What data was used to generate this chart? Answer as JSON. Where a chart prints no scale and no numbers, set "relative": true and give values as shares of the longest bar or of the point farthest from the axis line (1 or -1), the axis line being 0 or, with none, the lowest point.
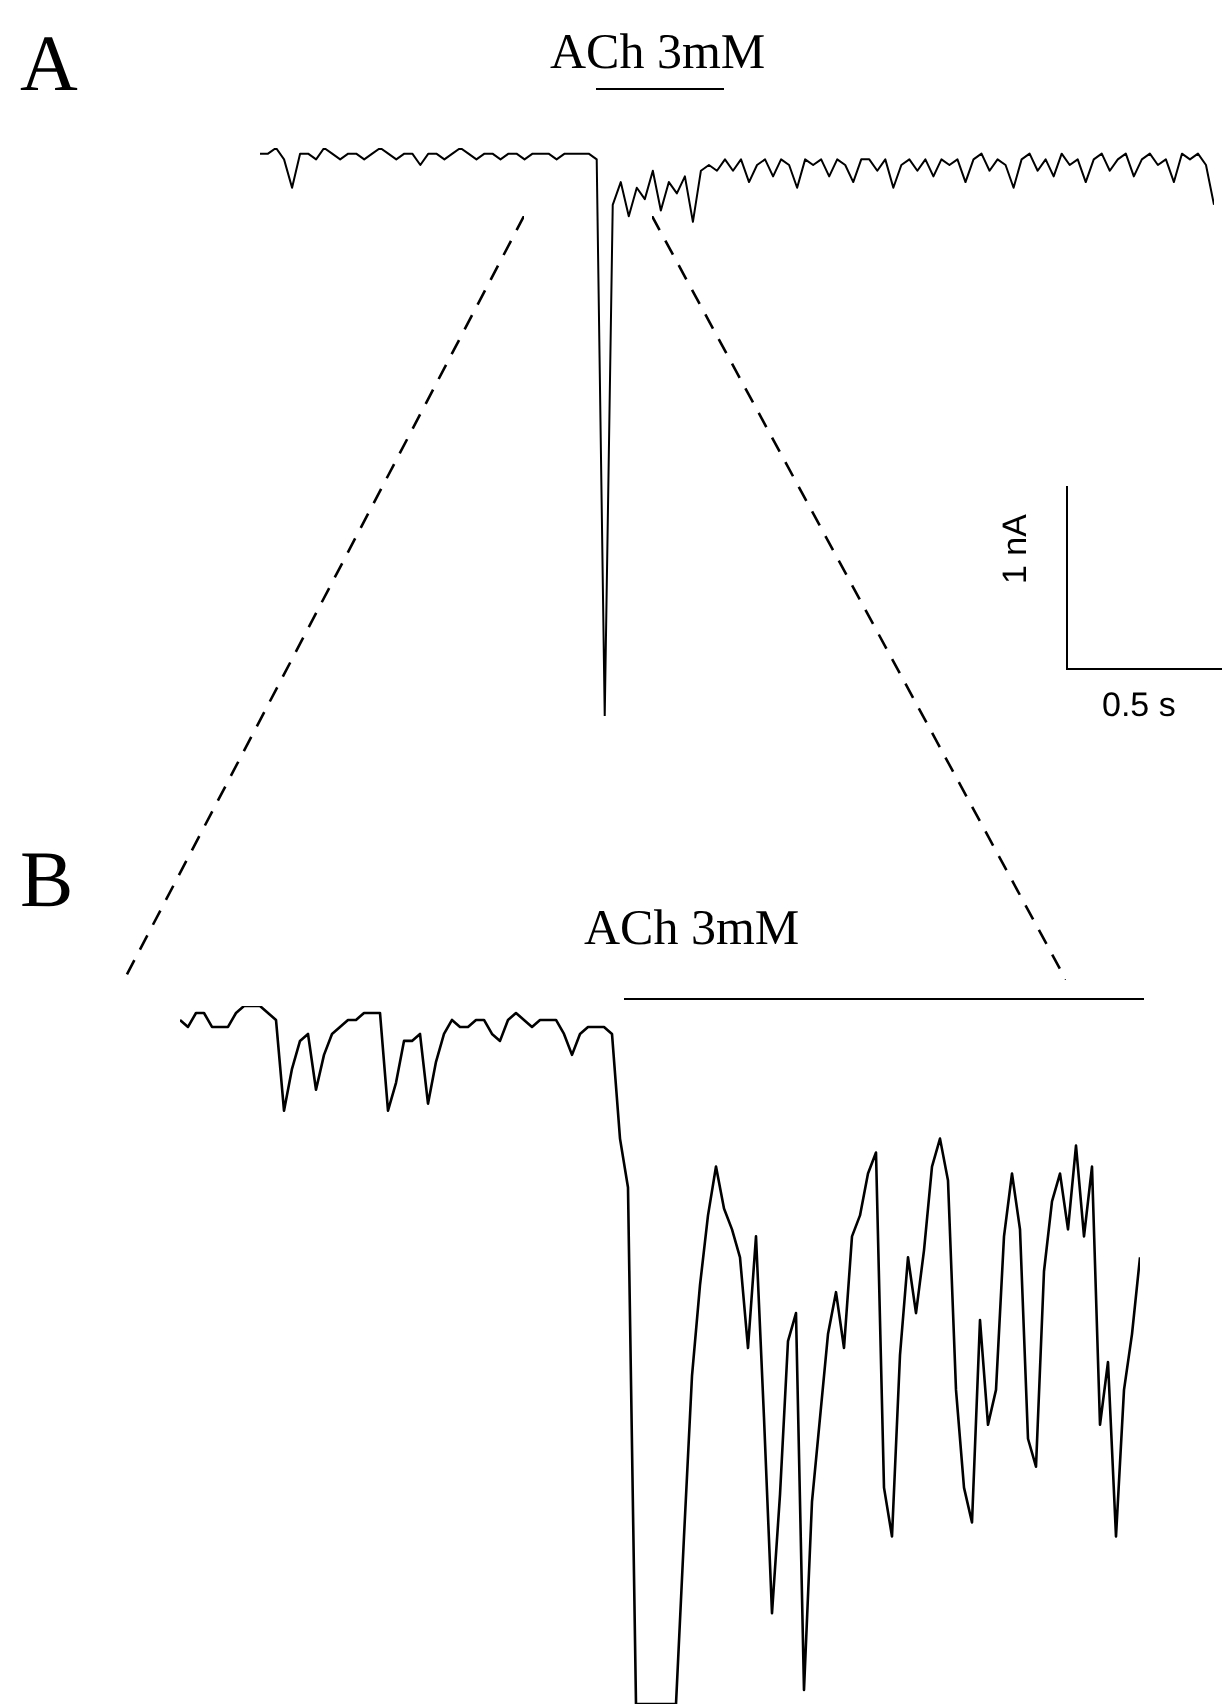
{
  "chart_data": [
    {
      "type": "line",
      "title": "A",
      "relative": true,
      "legend": false,
      "annotations": [
        "ACh 3mM",
        "1 nA",
        "0.5 s"
      ],
      "categories": [
        null,
        null,
        null,
        null,
        null,
        null,
        null,
        null,
        null,
        null,
        null,
        null,
        null,
        null,
        null,
        null,
        null,
        null,
        null,
        null,
        null,
        null,
        null,
        null,
        null,
        null,
        null,
        null,
        null,
        null,
        null,
        null,
        null,
        null,
        null,
        null,
        null,
        null,
        null,
        null,
        null,
        null,
        null,
        null,
        null,
        null,
        null,
        null,
        null,
        null,
        null,
        null,
        null,
        null,
        null,
        null,
        null,
        null,
        null,
        null,
        null,
        null,
        null,
        null,
        null,
        null,
        null,
        null,
        null,
        null,
        null,
        null,
        null,
        null,
        null,
        null,
        null,
        null,
        null,
        null,
        null,
        null,
        null,
        null,
        null,
        null,
        null,
        null,
        null,
        null,
        null,
        null,
        null,
        null,
        null,
        null,
        null,
        null,
        null,
        null,
        null,
        null,
        null,
        null,
        null,
        null,
        null,
        null,
        null,
        null,
        null,
        null,
        null,
        null,
        null,
        null,
        null,
        null,
        null,
        null
      ],
      "series": [
        {
          "color": "#000000",
          "values": [
            0.99,
            0.99,
            1,
            0.98,
            0.93,
            0.99,
            0.99,
            0.98,
            1,
            0.99,
            0.98,
            0.99,
            0.99,
            0.98,
            0.99,
            1,
            0.99,
            0.98,
            0.99,
            0.99,
            0.97,
            0.99,
            0.99,
            0.98,
            0.99,
            1,
            0.99,
            0.98,
            0.99,
            0.99,
            0.98,
            0.99,
            0.99,
            0.98,
            0.99,
            0.99,
            0.99,
            0.98,
            0.99,
            0.99,
            0.99,
            0.99,
            0.98,
            0,
            0.9,
            0.94,
            0.88,
            0.93,
            0.91,
            0.96,
            0.89,
            0.94,
            0.92,
            0.95,
            0.87,
            0.96,
            0.97,
            0.96,
            0.98,
            0.96,
            0.98,
            0.94,
            0.97,
            0.98,
            0.95,
            0.98,
            0.97,
            0.93,
            0.98,
            0.97,
            0.98,
            0.95,
            0.98,
            0.97,
            0.94,
            0.98,
            0.98,
            0.96,
            0.98,
            0.93,
            0.97,
            0.98,
            0.96,
            0.98,
            0.95,
            0.98,
            0.97,
            0.98,
            0.94,
            0.98,
            0.99,
            0.96,
            0.98,
            0.97,
            0.93,
            0.98,
            0.99,
            0.96,
            0.98,
            0.95,
            0.99,
            0.97,
            0.98,
            0.94,
            0.98,
            0.99,
            0.96,
            0.98,
            0.99,
            0.95,
            0.98,
            0.99,
            0.97,
            0.98,
            0.94,
            0.99,
            0.98,
            0.99,
            0.97,
            0.9
          ]
        }
      ]
    },
    {
      "type": "line",
      "title": "B",
      "relative": true,
      "legend": false,
      "annotations": [
        "ACh 3mM"
      ],
      "categories": [
        null,
        null,
        null,
        null,
        null,
        null,
        null,
        null,
        null,
        null,
        null,
        null,
        null,
        null,
        null,
        null,
        null,
        null,
        null,
        null,
        null,
        null,
        null,
        null,
        null,
        null,
        null,
        null,
        null,
        null,
        null,
        null,
        null,
        null,
        null,
        null,
        null,
        null,
        null,
        null,
        null,
        null,
        null,
        null,
        null,
        null,
        null,
        null,
        null,
        null,
        null,
        null,
        null,
        null,
        null,
        null,
        null,
        null,
        null,
        null,
        null,
        null,
        null,
        null,
        null,
        null,
        null,
        null,
        null,
        null,
        null,
        null,
        null,
        null,
        null,
        null,
        null,
        null,
        null,
        null,
        null,
        null,
        null,
        null,
        null,
        null,
        null,
        null,
        null,
        null,
        null,
        null,
        null,
        null,
        null,
        null,
        null,
        null,
        null,
        null,
        null,
        null,
        null,
        null,
        null,
        null,
        null,
        null,
        null,
        null,
        null,
        null,
        null,
        null,
        null,
        null,
        null,
        null,
        null,
        null,
        null
      ],
      "series": [
        {
          "color": "#000000",
          "values": [
            0.98,
            0.97,
            0.99,
            0.99,
            0.97,
            0.97,
            0.97,
            0.99,
            1,
            1,
            1,
            0.99,
            0.98,
            0.85,
            0.91,
            0.95,
            0.96,
            0.88,
            0.93,
            0.96,
            0.97,
            0.98,
            0.98,
            0.99,
            0.99,
            0.99,
            0.85,
            0.89,
            0.95,
            0.95,
            0.96,
            0.86,
            0.92,
            0.96,
            0.98,
            0.97,
            0.97,
            0.98,
            0.98,
            0.96,
            0.95,
            0.98,
            0.99,
            0.98,
            0.97,
            0.98,
            0.98,
            0.98,
            0.96,
            0.93,
            0.96,
            0.97,
            0.97,
            0.97,
            0.96,
            0.81,
            0.74,
            0,
            0,
            0,
            0,
            0,
            0,
            0.24,
            0.47,
            0.6,
            0.7,
            0.77,
            0.71,
            0.68,
            0.64,
            0.51,
            0.67,
            0.41,
            0.13,
            0.3,
            0.52,
            0.56,
            0.02,
            0.29,
            0.41,
            0.53,
            0.59,
            0.51,
            0.67,
            0.7,
            0.76,
            0.79,
            0.31,
            0.24,
            0.5,
            0.64,
            0.56,
            0.65,
            0.77,
            0.81,
            0.75,
            0.45,
            0.31,
            0.26,
            0.55,
            0.4,
            0.45,
            0.67,
            0.76,
            0.68,
            0.38,
            0.34,
            0.62,
            0.72,
            0.76,
            0.68,
            0.8,
            0.67,
            0.77,
            0.4,
            0.49,
            0.24,
            0.45,
            0.53,
            0.64
          ]
        }
      ]
    }
  ]
}
